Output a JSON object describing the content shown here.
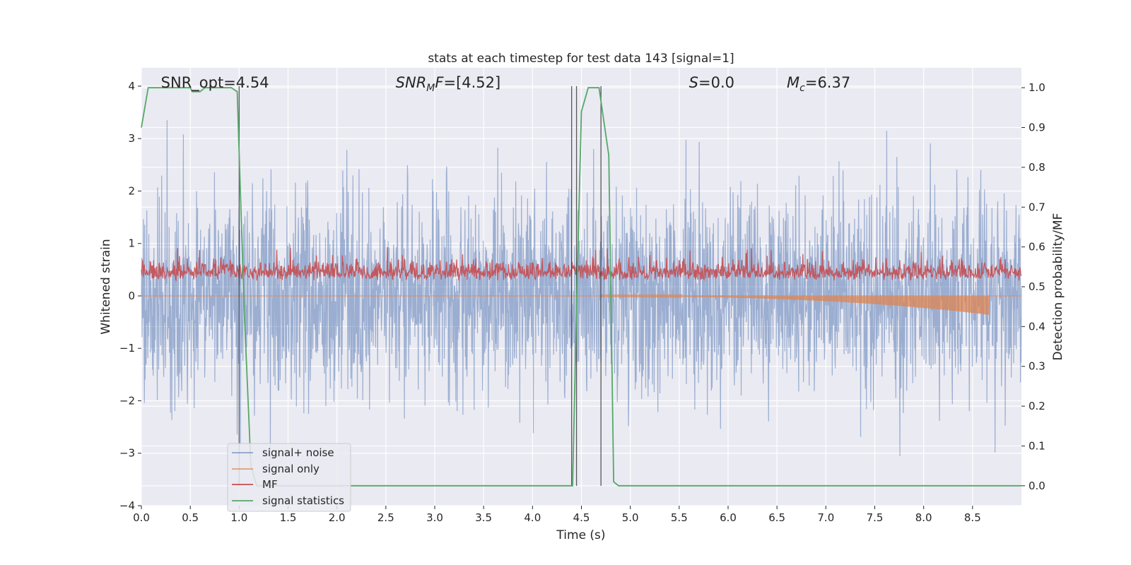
{
  "chart_data": {
    "type": "line",
    "title": "stats at each timestep for test data 143 [signal=1]",
    "xlabel": "Time (s)",
    "ylabel_left": "Whitened strain",
    "ylabel_right": "Detection probability/MF",
    "xlim": [
      0.0,
      9.0
    ],
    "ylim_left": [
      -4.0,
      4.35
    ],
    "ylim_right": [
      -0.05,
      1.05
    ],
    "xticks": [
      "0.0",
      "0.5",
      "1.0",
      "1.5",
      "2.0",
      "2.5",
      "3.0",
      "3.5",
      "4.0",
      "4.5",
      "5.0",
      "5.5",
      "6.0",
      "6.5",
      "7.0",
      "7.5",
      "8.0",
      "8.5"
    ],
    "yticks_left": [
      "4",
      "3",
      "2",
      "1",
      "0",
      "−1",
      "−2",
      "−3",
      "−4"
    ],
    "yticks_right": [
      "1.0",
      "0.9",
      "0.8",
      "0.7",
      "0.6",
      "0.5",
      "0.4",
      "0.3",
      "0.2",
      "0.1",
      "0.0"
    ],
    "grid": true,
    "legend_position": "lower-left",
    "annotations": {
      "snr_opt": {
        "prefix": "SNR_opt=",
        "value": "4.54",
        "x": 0.2
      },
      "snr_mf": {
        "prefix": "SNR",
        "sub": "M",
        "suffix": "F=",
        "value": "[4.52]",
        "x": 2.6
      },
      "s": {
        "prefix": "S",
        "suffix": "=",
        "value": "0.0",
        "x": 5.6
      },
      "mc": {
        "prefix": "M",
        "sub": "c",
        "suffix": "=",
        "value": "6.37",
        "x": 6.6
      }
    },
    "vlines_x": [
      1.0,
      4.4,
      4.45,
      4.7
    ],
    "series": [
      {
        "name": "signal+ noise",
        "color": "#4c72b0",
        "axis": "left",
        "envelope": [
          -2.8,
          2.9
        ],
        "peak_max": 4.0,
        "peak_min": -3.6
      },
      {
        "name": "signal only",
        "color": "#dd8452",
        "axis": "left",
        "chirp_start": 4.7,
        "chirp_end": 8.67,
        "chirp_min_amp": 0.35
      },
      {
        "name": "MF",
        "color": "#c44e52",
        "axis": "right",
        "band": [
          0.5,
          0.6
        ],
        "peak_max": 0.6
      },
      {
        "name": "signal statistics",
        "color": "#55a868",
        "axis": "right",
        "points": [
          [
            0.0,
            0.9
          ],
          [
            0.07,
            1.0
          ],
          [
            0.5,
            1.0
          ],
          [
            0.52,
            0.99
          ],
          [
            0.6,
            0.99
          ],
          [
            0.65,
            1.0
          ],
          [
            0.92,
            1.0
          ],
          [
            0.98,
            0.99
          ],
          [
            1.05,
            0.45
          ],
          [
            1.12,
            0.05
          ],
          [
            1.18,
            0.0
          ],
          [
            4.41,
            0.0
          ],
          [
            4.45,
            0.45
          ],
          [
            4.5,
            0.94
          ],
          [
            4.57,
            1.0
          ],
          [
            4.68,
            1.0
          ],
          [
            4.78,
            0.83
          ],
          [
            4.83,
            0.01
          ],
          [
            4.88,
            0.0
          ],
          [
            9.0,
            0.0
          ]
        ]
      }
    ]
  }
}
